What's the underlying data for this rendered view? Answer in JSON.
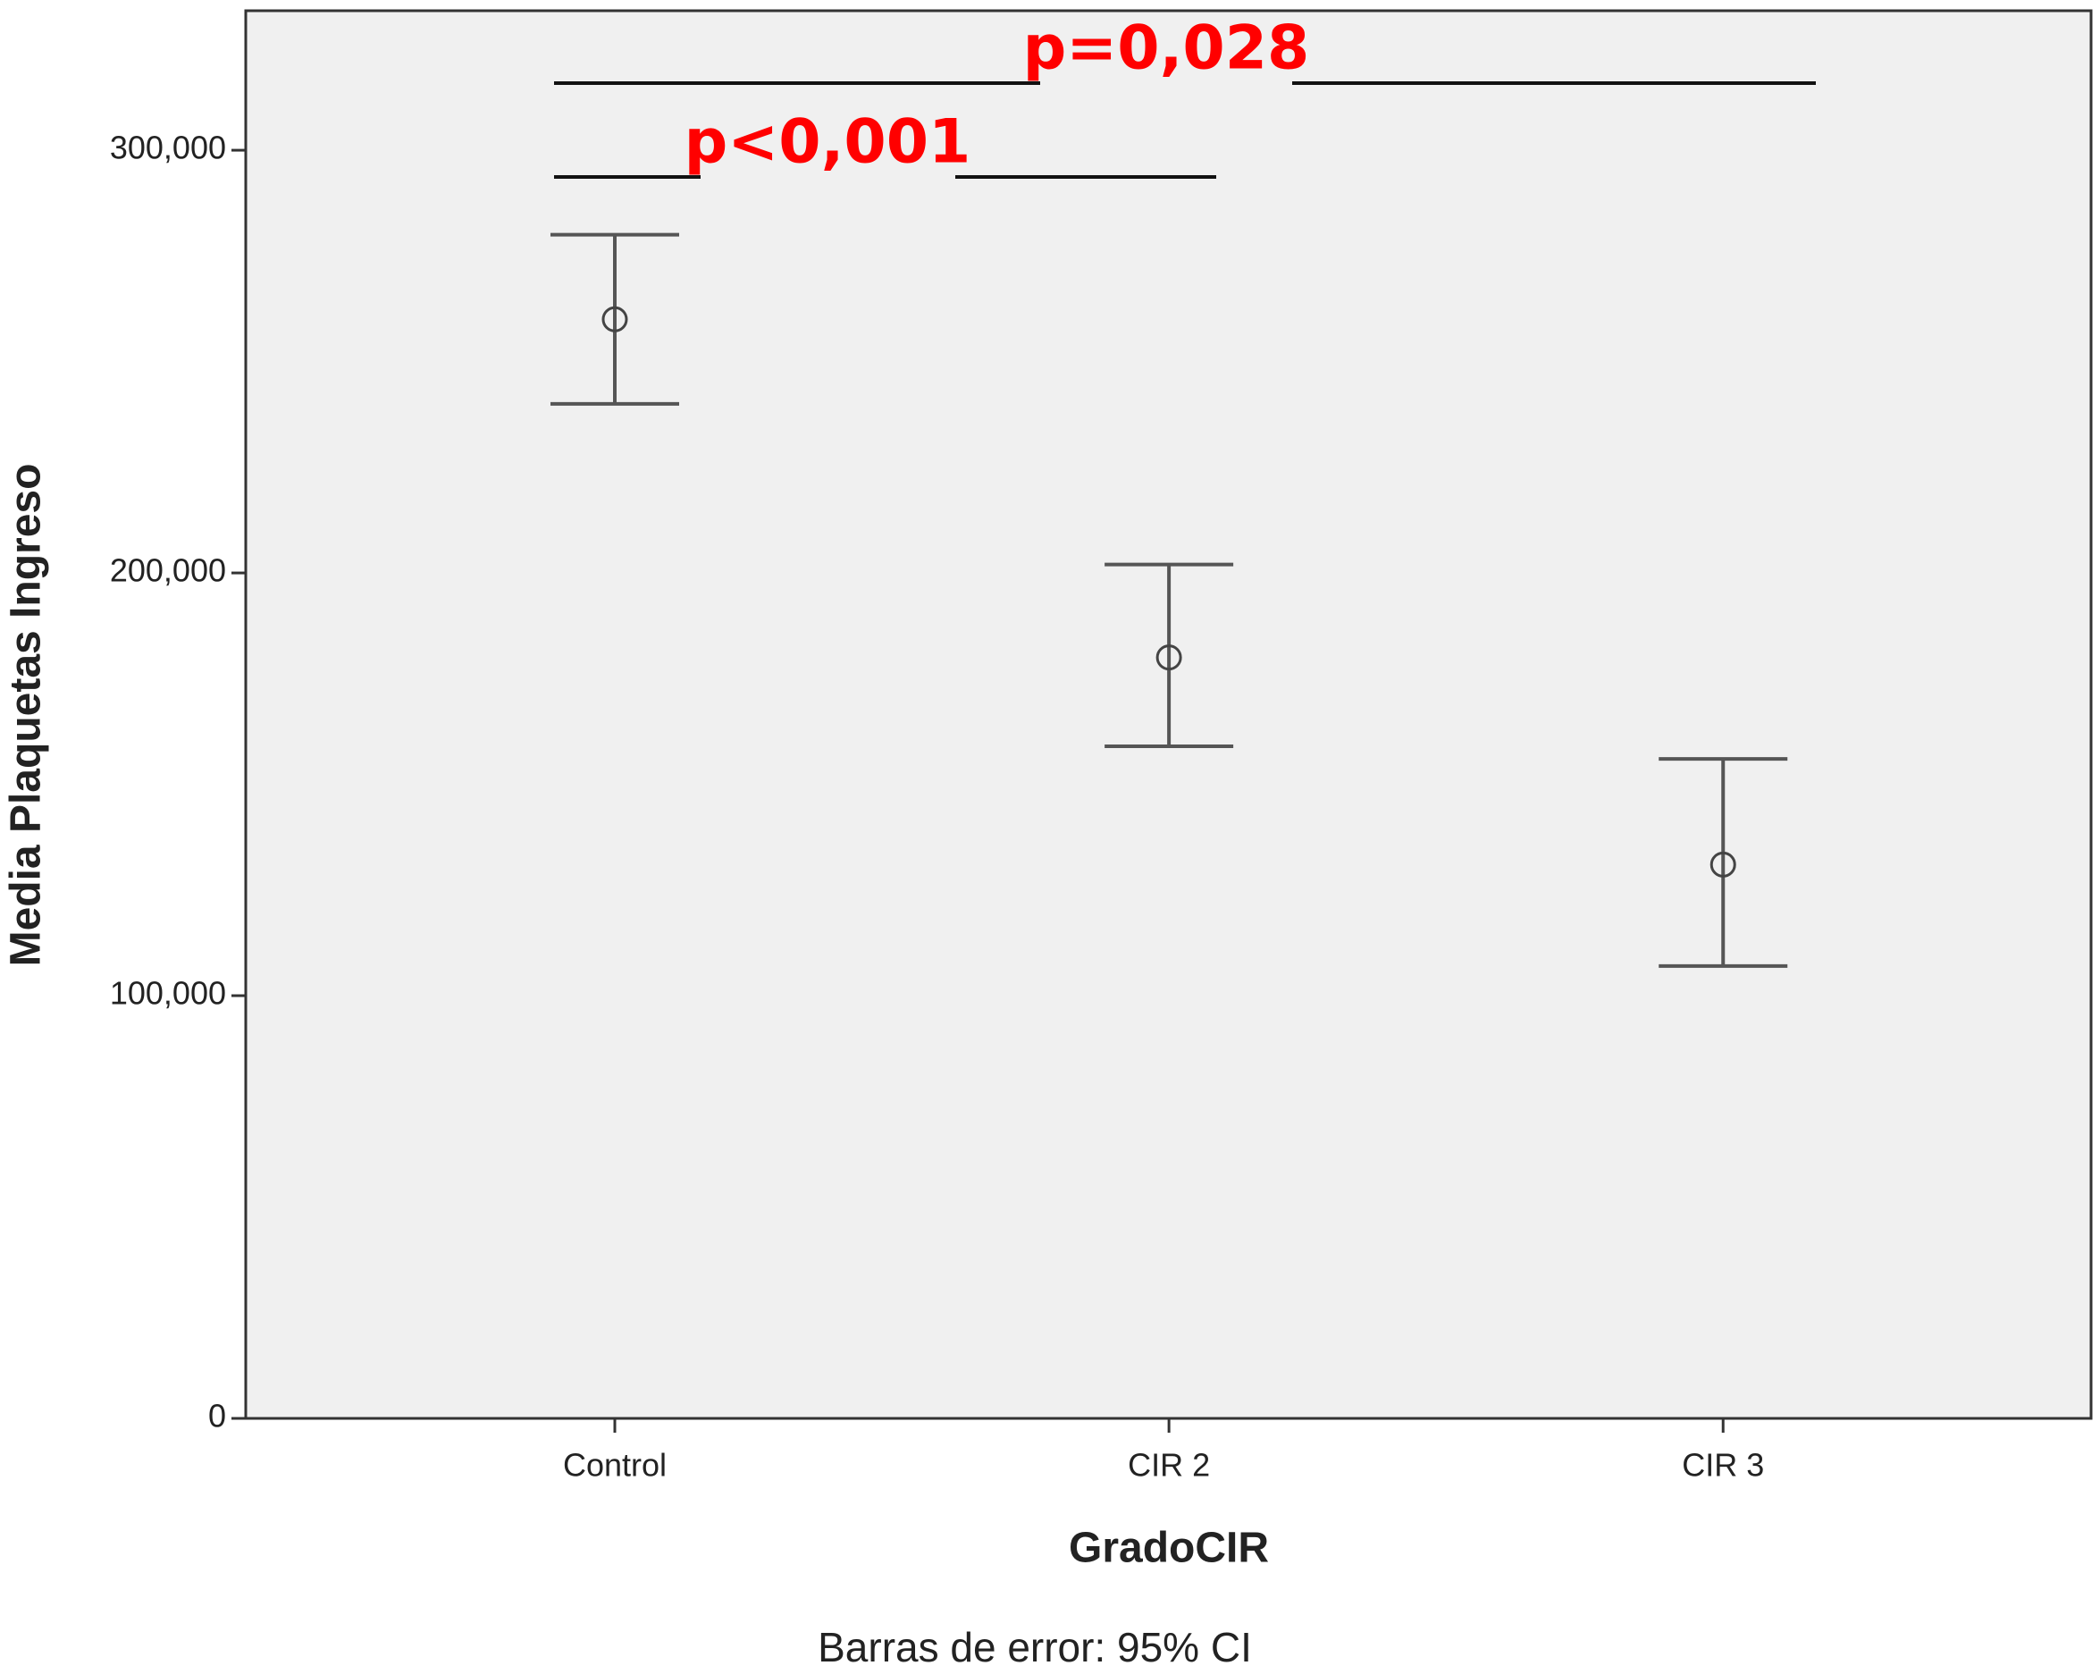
{
  "chart_data": {
    "type": "errorbar",
    "x_label": "GradoCIR",
    "y_label": "Media Plaquetas Ingreso",
    "footnote": "Barras de error: 95% CI",
    "categories": [
      "Control",
      "CIR 2",
      "CIR 3"
    ],
    "values": [
      260000,
      180000,
      131000
    ],
    "lower": [
      240000,
      159000,
      107000
    ],
    "upper": [
      280000,
      202000,
      156000
    ],
    "color": "#555555",
    "ylim": [
      0,
      333000
    ],
    "yticks": [
      0,
      {
        "value": 100000,
        "label": "100,000"
      },
      {
        "value": 200000,
        "label": "200,000"
      },
      {
        "value": 300000,
        "label": "300,000"
      }
    ],
    "annotations": [
      "p=0,028",
      "p<0,001"
    ]
  }
}
